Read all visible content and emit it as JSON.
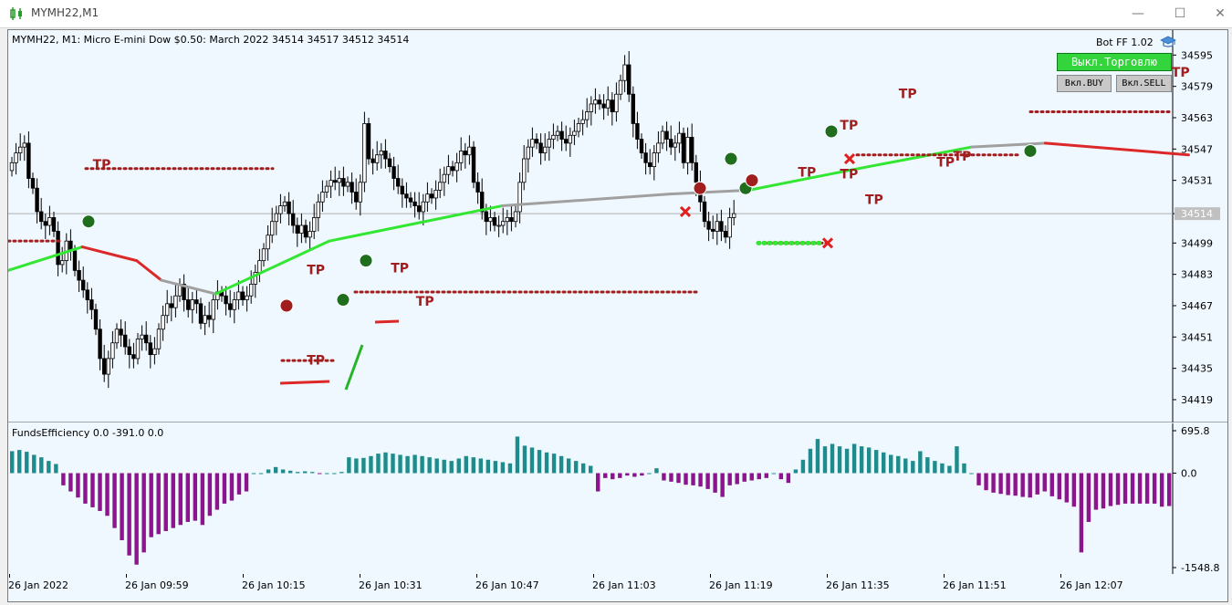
{
  "window": {
    "title": "MYMH22,M1",
    "minimize": "—",
    "maximize": "☐",
    "close": "✕"
  },
  "chart_info": "MYMH22, M1:  Micro E-mini Dow $0.50: March 2022  34514 34517 34512 34514",
  "bot": {
    "label": "Bot FF 1.02",
    "trade_button": "Выкл.Торговлю",
    "buy_button": "Вкл.BUY",
    "sell_button": "Вкл.SELL"
  },
  "indicator_info": "FundsEfficiency 0.0 -391.0 0.0",
  "colors": {
    "bg": "#f0f8ff",
    "ma_up": "#32e632",
    "ma_down": "#dc2828",
    "ma_flat": "#a0a0a0",
    "tp": "#a01e1e",
    "hist_pos": "#1e8c8c",
    "hist_neg": "#8c148c"
  },
  "chart_data": [
    {
      "type": "candlestick",
      "yaxis_ticks": [
        "34595",
        "34579",
        "34563",
        "34547",
        "34531",
        "34514",
        "34499",
        "34483",
        "34467",
        "34451",
        "34435",
        "34419"
      ],
      "current_price": "34514",
      "ylim": [
        34412,
        34604
      ],
      "close": [
        34540,
        34545,
        34548,
        34550,
        34532,
        34527,
        34515,
        34510,
        34508,
        34512,
        34505,
        34488,
        34490,
        34500,
        34495,
        34485,
        34480,
        34475,
        34470,
        34465,
        34455,
        34440,
        34432,
        34440,
        34448,
        34455,
        34452,
        34446,
        34442,
        34440,
        34450,
        34452,
        34448,
        34442,
        34445,
        34455,
        34462,
        34468,
        34466,
        34472,
        34478,
        34470,
        34465,
        34470,
        34468,
        34458,
        34462,
        34460,
        34470,
        34474,
        34472,
        34468,
        34465,
        34470,
        34474,
        34470,
        34472,
        34478,
        34484,
        34490,
        34496,
        34503,
        34510,
        34514,
        34518,
        34520,
        34514,
        34508,
        34504,
        34508,
        34502,
        34505,
        34512,
        34520,
        34525,
        34528,
        34531,
        34530,
        34532,
        34528,
        34530,
        34525,
        34520,
        34530,
        34560,
        34542,
        34540,
        34544,
        34546,
        34542,
        34538,
        34532,
        34528,
        34524,
        34522,
        34520,
        34518,
        34515,
        34520,
        34524,
        34522,
        34526,
        34530,
        34534,
        34538,
        34536,
        34540,
        34546,
        34544,
        34548,
        34530,
        34525,
        34515,
        34510,
        34512,
        34508,
        34508,
        34510,
        34512,
        34510,
        34515,
        34530,
        34542,
        34548,
        34552,
        34550,
        34545,
        34548,
        34552,
        34554,
        34556,
        34552,
        34550,
        34554,
        34556,
        34560,
        34562,
        34566,
        34570,
        34572,
        34570,
        34568,
        34572,
        34566,
        34575,
        34582,
        34590,
        34575,
        34560,
        34552,
        34545,
        34540,
        34538,
        34545,
        34550,
        34556,
        34552,
        34548,
        34550,
        34555,
        34540,
        34553,
        34540,
        34530,
        34520,
        34510,
        34506,
        34505,
        34510,
        34505,
        34502,
        34512,
        34514
      ],
      "ma_segments": [
        {
          "color": "up",
          "x": [
            0,
            30
          ],
          "values": [
            34485,
            34497
          ]
        },
        {
          "color": "down",
          "x": [
            30,
            52
          ],
          "values": [
            34497,
            34490
          ]
        },
        {
          "color": "down",
          "x": [
            52,
            62
          ],
          "values": [
            34490,
            34480
          ]
        },
        {
          "color": "flat",
          "x": [
            62,
            84
          ],
          "values": [
            34480,
            34473
          ]
        },
        {
          "color": "up",
          "x": [
            84,
            130
          ],
          "values": [
            34473,
            34500
          ]
        },
        {
          "color": "up",
          "x": [
            130,
            200
          ],
          "values": [
            34500,
            34518
          ]
        },
        {
          "color": "flat",
          "x": [
            200,
            268
          ],
          "values": [
            34518,
            34524
          ]
        },
        {
          "color": "flat",
          "x": [
            268,
            300
          ],
          "values": [
            34524,
            34526
          ]
        },
        {
          "color": "up",
          "x": [
            300,
            340
          ],
          "values": [
            34526,
            34536
          ]
        },
        {
          "color": "up",
          "x": [
            340,
            390
          ],
          "values": [
            34536,
            34548
          ]
        },
        {
          "color": "flat",
          "x": [
            390,
            420
          ],
          "values": [
            34548,
            34550
          ]
        },
        {
          "color": "down",
          "x": [
            420,
            478
          ],
          "values": [
            34550,
            34544
          ]
        }
      ]
    },
    {
      "type": "histogram",
      "yaxis_ticks": [
        "695.8",
        "0.0",
        "-1548.8"
      ],
      "ylim": [
        -1548.8,
        695.8
      ],
      "values": [
        360,
        380,
        350,
        300,
        260,
        200,
        150,
        -200,
        -300,
        -400,
        -500,
        -560,
        -620,
        -700,
        -900,
        -1100,
        -1350,
        -1500,
        -1300,
        -1050,
        -1000,
        -950,
        -900,
        -850,
        -800,
        -780,
        -850,
        -700,
        -600,
        -500,
        -450,
        -350,
        -300,
        0,
        0,
        60,
        100,
        60,
        40,
        20,
        30,
        20,
        -10,
        0,
        0,
        20,
        260,
        240,
        250,
        280,
        320,
        340,
        320,
        300,
        280,
        300,
        280,
        260,
        240,
        220,
        200,
        240,
        280,
        260,
        240,
        220,
        200,
        180,
        160,
        600,
        450,
        420,
        380,
        340,
        320,
        280,
        240,
        200,
        160,
        120,
        -300,
        -80,
        -100,
        -80,
        -40,
        -60,
        -40,
        0,
        80,
        -120,
        -140,
        -160,
        -190,
        -200,
        -220,
        -260,
        -320,
        -390,
        -200,
        -180,
        -140,
        -120,
        -100,
        -80,
        0,
        -100,
        -160,
        60,
        220,
        400,
        560,
        440,
        480,
        440,
        400,
        480,
        440,
        420,
        380,
        340,
        300,
        280,
        240,
        200,
        360,
        260,
        200,
        160,
        120,
        440,
        160,
        0,
        -200,
        -280,
        -320,
        -340,
        -360,
        -370,
        -390,
        -400,
        -350,
        -300,
        -380,
        -430,
        -480,
        -550,
        -1300,
        -800,
        -600,
        -580,
        -540,
        -520,
        -500,
        -500,
        -500,
        -500,
        -500,
        -550,
        -540
      ],
      "xaxis_ticks": [
        "26 Jan 2022",
        "26 Jan 09:59",
        "26 Jan 10:15",
        "26 Jan 10:31",
        "26 Jan 10:47",
        "26 Jan 11:03",
        "26 Jan 11:19",
        "26 Jan 11:35",
        "26 Jan 11:51",
        "26 Jan 12:07"
      ]
    }
  ],
  "tp_label": "TP",
  "tp_markers": [
    {
      "x_idx": 21,
      "price": 34537
    },
    {
      "x_idx": 72,
      "price": 34483
    },
    {
      "x_idx": 72,
      "price": 34437
    },
    {
      "x_idx": 92,
      "price": 34484
    },
    {
      "x_idx": 98,
      "price": 34467
    },
    {
      "x_idx": 189,
      "price": 34533
    },
    {
      "x_idx": 199,
      "price": 34557
    },
    {
      "x_idx": 199,
      "price": 34532
    },
    {
      "x_idx": 205,
      "price": 34519
    },
    {
      "x_idx": 213,
      "price": 34573
    },
    {
      "x_idx": 222,
      "price": 34538
    },
    {
      "x_idx": 226,
      "price": 34541
    },
    {
      "x_idx": 278,
      "price": 34584
    }
  ]
}
